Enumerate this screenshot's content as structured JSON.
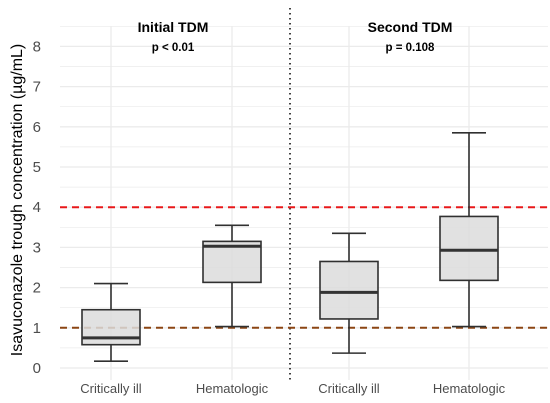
{
  "chart_data": {
    "type": "box",
    "ylabel": "Isavuconazole trough concentration (µg/mL)",
    "ylim": [
      0,
      8.5
    ],
    "y_ticks": [
      0,
      1,
      2,
      3,
      4,
      5,
      6,
      7,
      8
    ],
    "panels": [
      {
        "title": "Initial TDM",
        "subtitle": "p < 0.01",
        "categories": [
          "Critically ill",
          "Hematologic"
        ],
        "boxes": [
          {
            "category": "Critically ill",
            "whisker_low": 0.17,
            "q1": 0.58,
            "median": 0.75,
            "q3": 1.45,
            "whisker_high": 2.1
          },
          {
            "category": "Hematologic",
            "whisker_low": 1.03,
            "q1": 2.13,
            "median": 3.03,
            "q3": 3.15,
            "whisker_high": 3.55
          }
        ]
      },
      {
        "title": "Second TDM",
        "subtitle": "p = 0.108",
        "categories": [
          "Critically ill",
          "Hematologic"
        ],
        "boxes": [
          {
            "category": "Critically ill",
            "whisker_low": 0.37,
            "q1": 1.22,
            "median": 1.88,
            "q3": 2.65,
            "whisker_high": 3.35
          },
          {
            "category": "Hematologic",
            "whisker_low": 1.03,
            "q1": 2.18,
            "median": 2.93,
            "q3": 3.77,
            "whisker_high": 5.85
          }
        ]
      }
    ],
    "reference_lines": [
      {
        "y": 4,
        "color": "#e8181a",
        "style": "dashed"
      },
      {
        "y": 1,
        "color": "#8b4513",
        "style": "dashed"
      }
    ],
    "panel_divider": "dotted",
    "grid": true,
    "colors": {
      "box_fill": "#dcdcdc",
      "box_stroke": "#303030",
      "grid": "#ebebeb"
    }
  }
}
